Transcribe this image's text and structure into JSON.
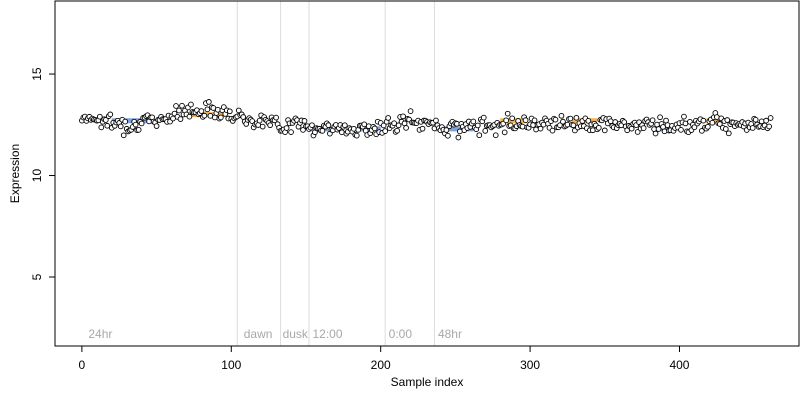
{
  "chart_data": {
    "type": "scatter",
    "title": "",
    "xlabel": "Sample index",
    "ylabel": "Expression",
    "xlim": [
      -18,
      480
    ],
    "ylim": [
      1.6,
      18.6
    ],
    "x_ticks": [
      0,
      100,
      200,
      300,
      400
    ],
    "y_ticks": [
      5,
      10,
      15
    ],
    "grid": false,
    "legend": "none",
    "colors": {
      "point_stroke": "#000000",
      "point_fill": "#ffffff",
      "segment_low": "#7fa2d8",
      "segment_high": "#f0b15a",
      "phase_line": "#dcdcdc",
      "phase_label": "#a8a8a8"
    },
    "phase_boundaries": [
      104,
      133,
      152,
      203,
      236
    ],
    "phase_labels": [
      {
        "x": 3,
        "text": "24hr"
      },
      {
        "x": 107,
        "text": "dawn"
      },
      {
        "x": 133,
        "text": "dusk"
      },
      {
        "x": 153,
        "text": "12:00"
      },
      {
        "x": 204,
        "text": "0:00"
      },
      {
        "x": 237,
        "text": "48hr"
      }
    ],
    "segments": [
      {
        "x0": 20,
        "x1": 46,
        "y": 12.7,
        "state": "low"
      },
      {
        "x0": 70,
        "x1": 96,
        "y": 13.0,
        "state": "high"
      },
      {
        "x0": 153,
        "x1": 165,
        "y": 12.3,
        "state": "low"
      },
      {
        "x0": 185,
        "x1": 200,
        "y": 12.3,
        "state": "low"
      },
      {
        "x0": 236,
        "x1": 262,
        "y": 12.3,
        "state": "low"
      },
      {
        "x0": 280,
        "x1": 298,
        "y": 12.7,
        "state": "high"
      },
      {
        "x0": 328,
        "x1": 345,
        "y": 12.7,
        "state": "high"
      },
      {
        "x0": 382,
        "x1": 392,
        "y": 12.3,
        "state": "low"
      },
      {
        "x0": 418,
        "x1": 432,
        "y": 12.7,
        "state": "high"
      }
    ],
    "series": [
      {
        "n": 462,
        "baseline": [
          [
            0,
            12.9
          ],
          [
            10,
            12.8
          ],
          [
            20,
            12.6
          ],
          [
            35,
            12.5
          ],
          [
            48,
            12.7
          ],
          [
            60,
            13.0
          ],
          [
            75,
            13.2
          ],
          [
            90,
            13.3
          ],
          [
            100,
            13.0
          ],
          [
            110,
            12.8
          ],
          [
            120,
            12.7
          ],
          [
            135,
            12.5
          ],
          [
            150,
            12.5
          ],
          [
            160,
            12.3
          ],
          [
            200,
            12.3
          ],
          [
            220,
            12.7
          ],
          [
            240,
            12.4
          ],
          [
            265,
            12.4
          ],
          [
            280,
            12.6
          ],
          [
            300,
            12.6
          ],
          [
            330,
            12.6
          ],
          [
            360,
            12.5
          ],
          [
            400,
            12.4
          ],
          [
            420,
            12.7
          ],
          [
            440,
            12.6
          ],
          [
            461,
            12.5
          ]
        ],
        "noise": 0.35,
        "seed": 7
      }
    ]
  }
}
